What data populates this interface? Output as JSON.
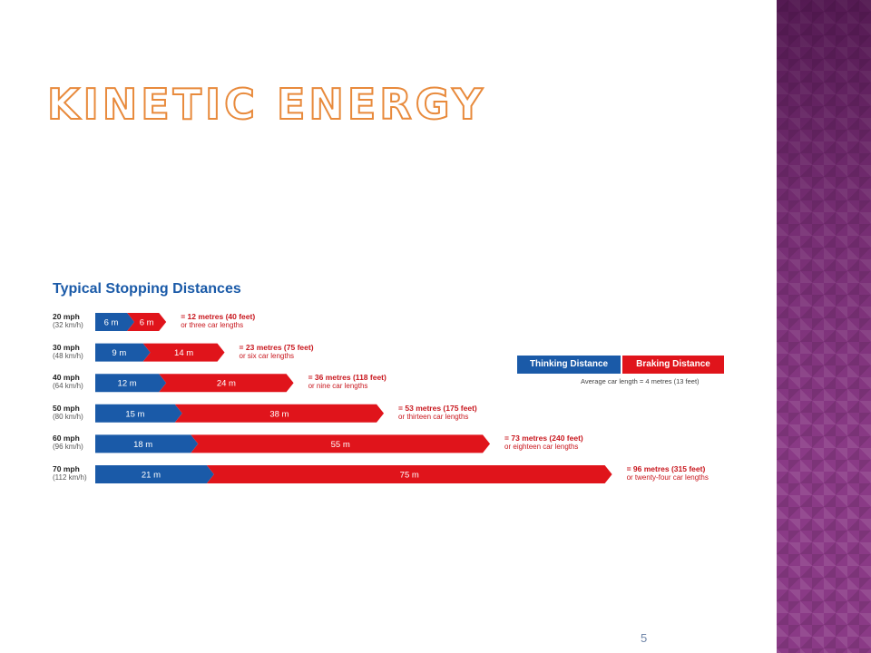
{
  "slide": {
    "title": "Kinetic energy",
    "page_number": "5"
  },
  "chart_data": {
    "type": "bar",
    "title": "Typical Stopping Distances",
    "stacked": true,
    "orientation": "horizontal",
    "categories": [
      {
        "speed": "20 mph",
        "kmh": "(32 km/h)"
      },
      {
        "speed": "30 mph",
        "kmh": "(48 km/h)"
      },
      {
        "speed": "40 mph",
        "kmh": "(64 km/h)"
      },
      {
        "speed": "50 mph",
        "kmh": "(80 km/h)"
      },
      {
        "speed": "60 mph",
        "kmh": "(96 km/h)"
      },
      {
        "speed": "70 mph",
        "kmh": "(112 km/h)"
      }
    ],
    "series": [
      {
        "name": "Thinking Distance",
        "color": "#1a5aa8",
        "values": [
          6,
          9,
          12,
          15,
          18,
          21
        ],
        "labels": [
          "6 m",
          "9 m",
          "12 m",
          "15 m",
          "18 m",
          "21 m"
        ]
      },
      {
        "name": "Braking Distance",
        "color": "#e0141b",
        "values": [
          6,
          14,
          24,
          38,
          55,
          75
        ],
        "labels": [
          "6 m",
          "14 m",
          "24 m",
          "38 m",
          "55 m",
          "75 m"
        ]
      }
    ],
    "totals": [
      {
        "main": "= 12 metres (40 feet)",
        "sub": "or three car lengths"
      },
      {
        "main": "= 23 metres (75 feet)",
        "sub": "or six car lengths"
      },
      {
        "main": "= 36 metres (118 feet)",
        "sub": "or nine car lengths"
      },
      {
        "main": "= 53 metres (175 feet)",
        "sub": "or thirteen car lengths"
      },
      {
        "main": "= 73 metres (240 feet)",
        "sub": "or eighteen car lengths"
      },
      {
        "main": "= 96 metres (315 feet)",
        "sub": "or twenty-four car lengths"
      }
    ],
    "legend_note": "Average car length = 4 metres (13 feet)",
    "legend_placement": "right"
  }
}
